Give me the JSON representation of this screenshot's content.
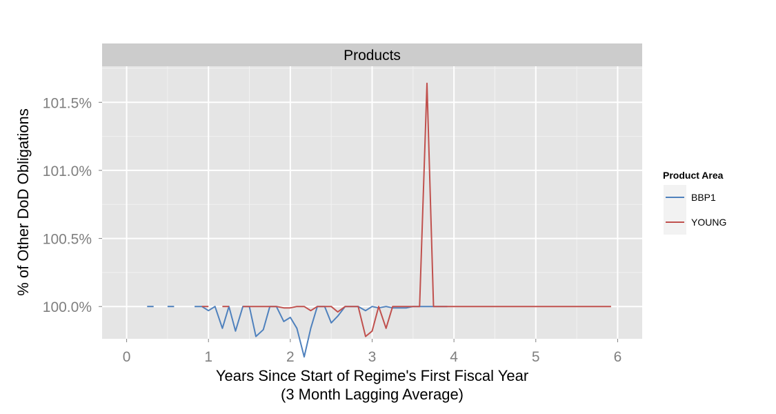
{
  "chart_data": {
    "type": "line",
    "title": "",
    "facet_label": "Products",
    "xlabel": "Years Since Start of Regime's First Fiscal Year",
    "xlabel_line2": "(3 Month Lagging Average)",
    "ylabel": "% of Other DoD Obligations",
    "xlim": [
      -0.3,
      6.3
    ],
    "ylim": [
      99.763,
      101.765
    ],
    "x_ticks": [
      0,
      1,
      2,
      3,
      4,
      5,
      6
    ],
    "x_tick_labels": [
      "0",
      "1",
      "2",
      "3",
      "4",
      "5",
      "6"
    ],
    "y_ticks": [
      100.0,
      100.5,
      101.0,
      101.5
    ],
    "y_tick_labels": [
      "100.0%",
      "100.5%",
      "101.0%",
      "101.5%"
    ],
    "grid": true,
    "legend_position": "right",
    "legend_title": "Product Area",
    "colors": {
      "panel_bg": "#e5e5e5",
      "strip_bg": "#cccccc",
      "grid_major": "#ffffff",
      "grid_minor": "#f2f2f2"
    },
    "series": [
      {
        "name": "BBP1",
        "color": "#4f81bd",
        "segments": [
          [
            [
              0.25,
              100.0
            ],
            [
              0.33,
              100.0
            ]
          ],
          [
            [
              0.5,
              100.0
            ],
            [
              0.58,
              100.0
            ]
          ],
          [
            [
              0.67,
              100.0
            ],
            [
              0.67,
              100.0
            ]
          ],
          [
            [
              0.83,
              100.0
            ],
            [
              0.92,
              100.0
            ],
            [
              1.0,
              99.97
            ],
            [
              1.08,
              100.0
            ],
            [
              1.17,
              99.84
            ],
            [
              1.25,
              100.0
            ],
            [
              1.33,
              99.82
            ],
            [
              1.42,
              100.0
            ],
            [
              1.5,
              100.0
            ],
            [
              1.58,
              99.78
            ],
            [
              1.67,
              99.83
            ],
            [
              1.75,
              100.0
            ],
            [
              1.83,
              100.0
            ],
            [
              1.92,
              99.89
            ],
            [
              2.0,
              99.92
            ],
            [
              2.08,
              99.84
            ],
            [
              2.17,
              99.63
            ],
            [
              2.25,
              99.84
            ],
            [
              2.33,
              100.0
            ],
            [
              2.42,
              100.0
            ],
            [
              2.5,
              99.88
            ],
            [
              2.58,
              99.93
            ],
            [
              2.67,
              100.0
            ],
            [
              2.75,
              100.0
            ],
            [
              2.83,
              100.0
            ],
            [
              2.92,
              99.97
            ],
            [
              3.0,
              100.0
            ],
            [
              3.08,
              99.99
            ],
            [
              3.17,
              100.0
            ],
            [
              3.25,
              99.99
            ],
            [
              3.33,
              99.99
            ],
            [
              3.42,
              99.99
            ],
            [
              3.5,
              100.0
            ],
            [
              3.58,
              100.0
            ],
            [
              3.67,
              100.0
            ],
            [
              3.75,
              100.0
            ],
            [
              3.83,
              100.0
            ],
            [
              3.92,
              100.0
            ]
          ]
        ]
      },
      {
        "name": "YOUNG",
        "color": "#c0504d",
        "segments": [
          [
            [
              0.92,
              100.0
            ],
            [
              1.0,
              100.0
            ]
          ],
          [
            [
              1.17,
              100.0
            ],
            [
              1.25,
              100.0
            ]
          ],
          [
            [
              1.42,
              100.0
            ],
            [
              1.5,
              100.0
            ],
            [
              1.58,
              100.0
            ],
            [
              1.67,
              100.0
            ],
            [
              1.75,
              100.0
            ],
            [
              1.83,
              100.0
            ],
            [
              1.92,
              99.99
            ],
            [
              2.0,
              99.99
            ],
            [
              2.08,
              100.0
            ],
            [
              2.17,
              100.0
            ],
            [
              2.25,
              99.97
            ],
            [
              2.33,
              100.0
            ],
            [
              2.42,
              100.0
            ],
            [
              2.5,
              100.0
            ],
            [
              2.58,
              99.96
            ],
            [
              2.67,
              100.0
            ],
            [
              2.75,
              100.0
            ],
            [
              2.83,
              100.0
            ],
            [
              2.92,
              99.78
            ],
            [
              3.0,
              99.82
            ],
            [
              3.08,
              100.0
            ],
            [
              3.17,
              99.84
            ],
            [
              3.25,
              100.0
            ],
            [
              3.33,
              100.0
            ],
            [
              3.42,
              100.0
            ],
            [
              3.5,
              100.0
            ],
            [
              3.58,
              100.0
            ],
            [
              3.67,
              101.64
            ],
            [
              3.75,
              100.0
            ],
            [
              3.83,
              100.0
            ],
            [
              3.92,
              100.0
            ],
            [
              4.0,
              100.0
            ],
            [
              4.25,
              100.0
            ],
            [
              4.5,
              100.0
            ],
            [
              4.75,
              100.0
            ],
            [
              5.0,
              100.0
            ],
            [
              5.25,
              100.0
            ],
            [
              5.5,
              100.0
            ],
            [
              5.75,
              100.0
            ],
            [
              5.92,
              100.0
            ]
          ]
        ]
      }
    ]
  }
}
